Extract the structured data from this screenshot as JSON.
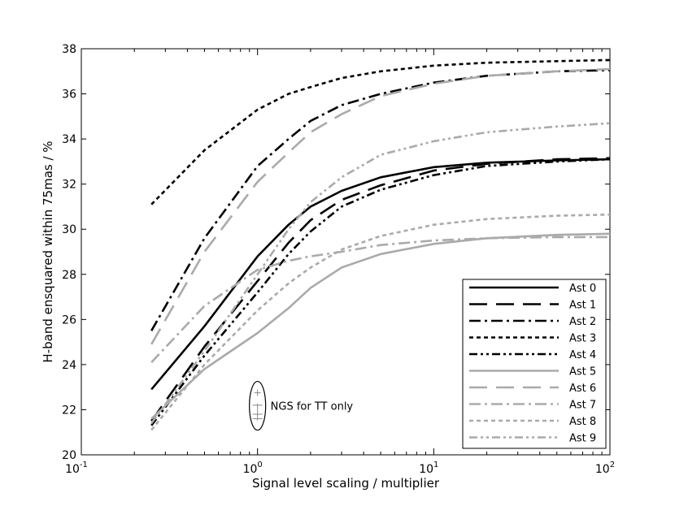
{
  "chart_data": {
    "type": "line",
    "title": "",
    "xlabel": "Signal level scaling / multiplier",
    "ylabel": "H-band ensquared within 75mas / %",
    "xscale": "log",
    "xlim": [
      0.1,
      100
    ],
    "ylim": [
      20,
      38
    ],
    "x_ticks": [
      {
        "value": 0.1,
        "base": "10",
        "exp": "-1"
      },
      {
        "value": 1,
        "base": "10",
        "exp": "0"
      },
      {
        "value": 10,
        "base": "10",
        "exp": "1"
      },
      {
        "value": 100,
        "base": "10",
        "exp": "2"
      }
    ],
    "y_ticks": [
      20,
      22,
      24,
      26,
      28,
      30,
      32,
      34,
      36,
      38
    ],
    "grid": false,
    "legend_position": "lower-right",
    "x": [
      0.25,
      0.5,
      1,
      1.5,
      2,
      3,
      5,
      10,
      20,
      50,
      100
    ],
    "series": [
      {
        "name": "Ast 0",
        "color": "#000000",
        "dash": "solid",
        "values": [
          22.9,
          25.7,
          28.8,
          30.2,
          31.0,
          31.7,
          32.3,
          32.75,
          32.95,
          33.05,
          33.1
        ]
      },
      {
        "name": "Ast 1",
        "color": "#000000",
        "dash": "long",
        "values": [
          21.5,
          24.8,
          27.7,
          29.4,
          30.4,
          31.3,
          31.95,
          32.6,
          32.9,
          33.1,
          33.15
        ]
      },
      {
        "name": "Ast 2",
        "color": "#000000",
        "dashdot": true,
        "dash": "dashdot",
        "values": [
          25.5,
          29.6,
          32.8,
          34.0,
          34.8,
          35.5,
          36.0,
          36.5,
          36.8,
          37.0,
          37.05
        ]
      },
      {
        "name": "Ast 3",
        "color": "#000000",
        "dash": "short",
        "values": [
          31.1,
          33.5,
          35.3,
          36.0,
          36.3,
          36.7,
          37.0,
          37.25,
          37.38,
          37.45,
          37.5
        ]
      },
      {
        "name": "Ast 4",
        "color": "#000000",
        "dash": "dashdotdot",
        "values": [
          21.3,
          24.4,
          27.2,
          28.9,
          29.9,
          31.0,
          31.75,
          32.4,
          32.8,
          33.0,
          33.1
        ]
      },
      {
        "name": "Ast 5",
        "color": "#aaaaaa",
        "dash": "solid",
        "values": [
          21.6,
          23.8,
          25.4,
          26.5,
          27.4,
          28.3,
          28.9,
          29.35,
          29.6,
          29.75,
          29.8
        ]
      },
      {
        "name": "Ast 6",
        "color": "#aaaaaa",
        "dash": "long",
        "values": [
          24.9,
          29.0,
          32.1,
          33.4,
          34.3,
          35.1,
          35.9,
          36.45,
          36.8,
          37.0,
          37.1
        ]
      },
      {
        "name": "Ast 7",
        "color": "#aaaaaa",
        "dash": "dashdot",
        "values": [
          24.1,
          26.6,
          28.2,
          28.6,
          28.8,
          29.0,
          29.3,
          29.5,
          29.6,
          29.65,
          29.65
        ]
      },
      {
        "name": "Ast 8",
        "color": "#aaaaaa",
        "dash": "short",
        "values": [
          21.1,
          24.0,
          26.4,
          27.6,
          28.3,
          29.1,
          29.7,
          30.2,
          30.45,
          30.6,
          30.65
        ]
      },
      {
        "name": "Ast 9",
        "color": "#aaaaaa",
        "dash": "dashdotdot",
        "values": [
          21.4,
          24.6,
          28.0,
          30.0,
          31.2,
          32.3,
          33.3,
          33.9,
          34.3,
          34.55,
          34.7
        ]
      }
    ],
    "annotation": {
      "text": "NGS for TT only",
      "marker_values": [
        22.75,
        22.2,
        21.8,
        21.6
      ],
      "x": 1.0
    }
  }
}
